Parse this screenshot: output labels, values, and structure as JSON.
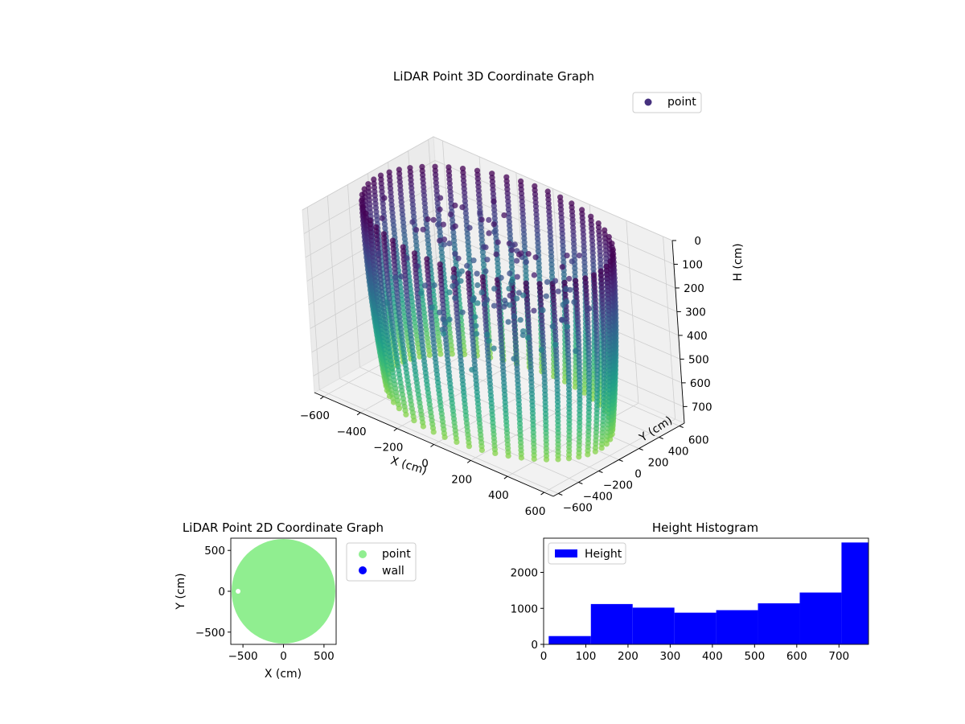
{
  "chart_data": [
    {
      "type": "scatter3d",
      "title": "LiDAR Point 3D Coordinate Graph",
      "xlabel": "X (cm)",
      "ylabel": "Y (cm)",
      "zlabel": "H (cm)",
      "xticks": [
        -600,
        -400,
        -200,
        0,
        200,
        400,
        600
      ],
      "yticks": [
        -600,
        -400,
        -200,
        0,
        200,
        400,
        600
      ],
      "zticks": [
        0,
        100,
        200,
        300,
        400,
        500,
        600,
        700
      ],
      "xlim": [
        -650,
        650
      ],
      "ylim": [
        -650,
        650
      ],
      "zlim": [
        0,
        770
      ],
      "z_inverted": true,
      "legend": {
        "position": "top-right",
        "entries": [
          "point"
        ]
      },
      "colormap": "viridis",
      "series": [
        {
          "name": "point",
          "shape": "cylindrical wall",
          "radius": 600,
          "h_range": [
            0,
            770
          ],
          "legend_color": "#46317e"
        }
      ]
    },
    {
      "type": "scatter",
      "title": "LiDAR Point 2D Coordinate Graph",
      "xlabel": "X (cm)",
      "ylabel": "Y (cm)",
      "xticks": [
        -500,
        0,
        500
      ],
      "yticks": [
        -500,
        0,
        500
      ],
      "xlim": [
        -650,
        650
      ],
      "ylim": [
        -650,
        650
      ],
      "legend": {
        "position": "outside-right"
      },
      "series": [
        {
          "name": "point",
          "color": "#90ee90",
          "shape": "filled disk",
          "radius": 640
        },
        {
          "name": "wall",
          "color": "#0000ff"
        }
      ]
    },
    {
      "type": "bar",
      "subtype": "histogram",
      "title": "Height Histogram",
      "xticks": [
        0,
        100,
        200,
        300,
        400,
        500,
        600,
        700
      ],
      "yticks": [
        0,
        1000,
        2000
      ],
      "xlim": [
        0,
        770
      ],
      "ylim": [
        0,
        2950
      ],
      "legend": {
        "position": "top-left"
      },
      "series": [
        {
          "name": "Height",
          "color": "#0000ff",
          "bins": [
            {
              "x0": 12,
              "x1": 112,
              "count": 230
            },
            {
              "x0": 112,
              "x1": 211,
              "count": 1120
            },
            {
              "x0": 211,
              "x1": 310,
              "count": 1020
            },
            {
              "x0": 310,
              "x1": 409,
              "count": 880
            },
            {
              "x0": 409,
              "x1": 508,
              "count": 950
            },
            {
              "x0": 508,
              "x1": 607,
              "count": 1140
            },
            {
              "x0": 607,
              "x1": 706,
              "count": 1440
            },
            {
              "x0": 706,
              "x1": 770,
              "count": 2830
            }
          ]
        }
      ]
    }
  ]
}
